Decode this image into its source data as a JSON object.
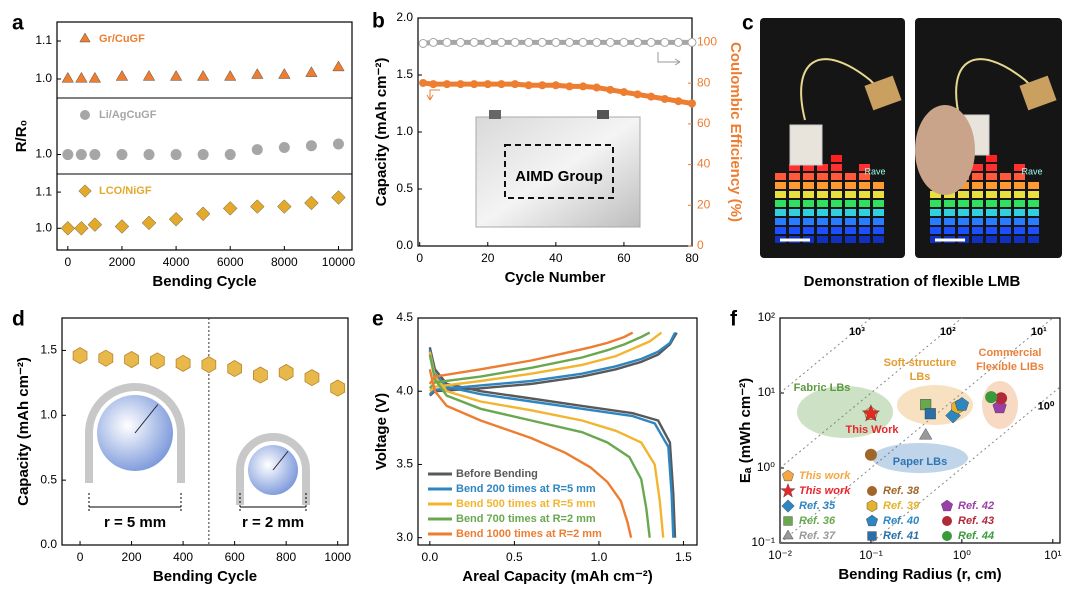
{
  "chart_data": [
    {
      "panel": "a",
      "type": "scatter",
      "x_label": "Bending Cycle",
      "y_label": "R/R₀",
      "x": [
        0,
        500,
        1000,
        2000,
        3000,
        4000,
        5000,
        6000,
        7000,
        8000,
        9000,
        10000
      ],
      "xlim": [
        -400,
        10500
      ],
      "xticks": [
        0,
        2000,
        4000,
        6000,
        8000,
        10000
      ],
      "subplots": [
        {
          "name": "Gr/CuGF",
          "color": "#ed7d31",
          "marker": "triangle",
          "values": [
            1.0,
            1.0,
            1.0,
            1.005,
            1.005,
            1.005,
            1.005,
            1.005,
            1.01,
            1.01,
            1.015,
            1.03
          ],
          "ylim": [
            0.95,
            1.15
          ],
          "yticks": [
            {
              "value": 1,
              "label": "1.0"
            },
            1.1
          ]
        },
        {
          "name": "Li/AgCuGF",
          "color": "#a6a6a6",
          "marker": "circle",
          "values": [
            1.0,
            1.0,
            1.0,
            1.0,
            1.0,
            1.0,
            1.0,
            1.0,
            1.014,
            1.02,
            1.025,
            1.03
          ],
          "ylim": [
            0.945,
            1.16
          ],
          "yticks": [
            {
              "value": 1,
              "label": "1.0"
            }
          ]
        },
        {
          "name": "LCO/NiGF",
          "color": "#e3a92b",
          "marker": "diamond",
          "values": [
            1.0,
            1.0,
            1.01,
            1.005,
            1.015,
            1.025,
            1.04,
            1.055,
            1.06,
            1.06,
            1.07,
            1.085
          ],
          "ylim": [
            0.94,
            1.15
          ],
          "yticks": [
            {
              "value": 1,
              "label": "1.0"
            },
            1.1
          ]
        }
      ]
    },
    {
      "panel": "b",
      "type": "line",
      "x_label": "Cycle Number",
      "y_label": "Capacity (mAh cm⁻²)",
      "y2_label": "Coulombic Efficiency (%)",
      "y2_color": "#ed7d31",
      "inset_text": "AIMD Group",
      "x": [
        1,
        4,
        8,
        12,
        16,
        20,
        24,
        28,
        32,
        36,
        40,
        44,
        48,
        52,
        56,
        60,
        64,
        68,
        72,
        76,
        80
      ],
      "xlim": [
        -0.5,
        80
      ],
      "xticks": [
        0,
        20,
        40,
        60,
        80
      ],
      "ylim": [
        0,
        2
      ],
      "yticks": [
        {
          "value": 0,
          "label": "0.0"
        },
        0.5,
        {
          "value": 1,
          "label": "1.0"
        },
        1.5,
        {
          "value": 2,
          "label": "2.0"
        }
      ],
      "y2lim": [
        0,
        112
      ],
      "y2ticks": [
        0,
        20,
        40,
        60,
        80,
        100
      ],
      "series": [
        {
          "color": "#ed7d31",
          "marker": "circle",
          "values": [
            1.43,
            1.42,
            1.42,
            1.42,
            1.42,
            1.42,
            1.42,
            1.42,
            1.41,
            1.41,
            1.41,
            1.4,
            1.4,
            1.39,
            1.37,
            1.35,
            1.33,
            1.31,
            1.29,
            1.27,
            1.25
          ]
        },
        {
          "color": "#a6a6a6",
          "marker": "circle-open",
          "axis": "y2",
          "values": [
            99.5,
            100,
            100,
            100,
            100,
            100,
            100,
            100,
            100,
            100,
            100,
            100,
            100,
            100,
            100,
            100,
            100,
            100,
            100,
            100,
            100
          ]
        }
      ]
    },
    {
      "panel": "d",
      "type": "scatter",
      "x_label": "Bending Cycle",
      "y_label": "Capacity (mAh cm⁻²)",
      "inset_labels": [
        "r = 5 mm",
        "r = 2 mm"
      ],
      "x": [
        0,
        100,
        200,
        300,
        400,
        500,
        600,
        700,
        800,
        900,
        1000
      ],
      "values": [
        1.46,
        1.44,
        1.43,
        1.42,
        1.4,
        1.39,
        1.36,
        1.31,
        1.33,
        1.29,
        1.21
      ],
      "color": "#e8b84a",
      "marker": "hexagon",
      "divider_x": 500,
      "xlim": [
        -70,
        1040
      ],
      "xticks": [
        0,
        200,
        400,
        600,
        800,
        1000
      ],
      "ylim": [
        0,
        1.75
      ],
      "yticks": [
        {
          "value": 0,
          "label": "0.0"
        },
        0.5,
        {
          "value": 1,
          "label": "1.0"
        },
        1.5
      ]
    },
    {
      "panel": "e",
      "type": "line",
      "x_label": "Areal Capacity (mAh cm⁻²)",
      "y_label": "Voltage (V)",
      "xlim": [
        -0.07,
        1.58
      ],
      "xticks": [
        {
          "value": 0,
          "label": "0.0"
        },
        0.5,
        {
          "value": 1,
          "label": "1.0"
        },
        1.5
      ],
      "ylim": [
        2.95,
        4.5
      ],
      "yticks": [
        {
          "value": 3,
          "label": "3.0"
        },
        3.5,
        {
          "value": 4,
          "label": "4.0"
        },
        4.5
      ],
      "series": [
        {
          "name": "Before Bending",
          "color": "#595959",
          "x": [
            0,
            0.03,
            0.1,
            0.3,
            0.6,
            0.9,
            1.2,
            1.35,
            1.42,
            1.44,
            1.45,
            null,
            0,
            0.03,
            0.3,
            0.6,
            0.9,
            1.1,
            1.25,
            1.35,
            1.42,
            1.46
          ],
          "values": [
            4.3,
            4.15,
            4.05,
            4.0,
            3.95,
            3.9,
            3.85,
            3.8,
            3.65,
            3.3,
            3.0,
            null,
            3.97,
            4.0,
            4.02,
            4.05,
            4.1,
            4.15,
            4.2,
            4.25,
            4.32,
            4.4
          ]
        },
        {
          "name": "Bend 200 times at R=5 mm",
          "color": "#2e86c1",
          "x": [
            0,
            0.03,
            0.1,
            0.3,
            0.6,
            0.9,
            1.2,
            1.33,
            1.41,
            1.43,
            1.44,
            null,
            0,
            0.03,
            0.3,
            0.6,
            0.9,
            1.1,
            1.25,
            1.35,
            1.42,
            1.45
          ],
          "values": [
            4.28,
            4.12,
            4.03,
            3.98,
            3.93,
            3.88,
            3.83,
            3.78,
            3.62,
            3.3,
            3.0,
            null,
            3.98,
            4.01,
            4.04,
            4.07,
            4.12,
            4.17,
            4.22,
            4.27,
            4.33,
            4.4
          ]
        },
        {
          "name": "Bend 500 times at R=5 mm",
          "color": "#f2b530",
          "x": [
            0,
            0.03,
            0.1,
            0.3,
            0.6,
            0.9,
            1.1,
            1.25,
            1.33,
            1.36,
            1.38,
            null,
            0,
            0.03,
            0.3,
            0.6,
            0.9,
            1.1,
            1.2,
            1.3,
            1.37
          ],
          "values": [
            4.27,
            4.1,
            4.0,
            3.93,
            3.87,
            3.8,
            3.73,
            3.65,
            3.5,
            3.25,
            3.0,
            null,
            4.0,
            4.03,
            4.07,
            4.12,
            4.18,
            4.24,
            4.29,
            4.34,
            4.4
          ]
        },
        {
          "name": "Bend 700 times at R=2 mm",
          "color": "#6aa84f",
          "x": [
            0,
            0.03,
            0.1,
            0.3,
            0.6,
            0.9,
            1.05,
            1.18,
            1.25,
            1.28,
            1.3,
            null,
            0,
            0.03,
            0.3,
            0.6,
            0.9,
            1.05,
            1.15,
            1.25,
            1.3
          ],
          "values": [
            4.25,
            4.08,
            3.97,
            3.88,
            3.8,
            3.72,
            3.65,
            3.55,
            3.4,
            3.2,
            3.0,
            null,
            4.02,
            4.06,
            4.1,
            4.16,
            4.23,
            4.28,
            4.32,
            4.37,
            4.4
          ]
        },
        {
          "name": "Bend 1000 times at R=2 mm",
          "color": "#ed7d31",
          "x": [
            0,
            0.03,
            0.1,
            0.3,
            0.6,
            0.8,
            0.95,
            1.05,
            1.13,
            1.17,
            1.19,
            null,
            0,
            0.03,
            0.3,
            0.6,
            0.8,
            0.95,
            1.05,
            1.15,
            1.2
          ],
          "values": [
            4.15,
            4.0,
            3.9,
            3.8,
            3.68,
            3.58,
            3.48,
            3.38,
            3.25,
            3.1,
            3.0,
            null,
            4.05,
            4.1,
            4.15,
            4.21,
            4.26,
            4.3,
            4.33,
            4.37,
            4.4
          ]
        }
      ]
    },
    {
      "panel": "f",
      "type": "scatter",
      "x_label": "Bending Radius (r, cm)",
      "y_label": "Eₐ (mWh cm⁻²)",
      "log_x": true,
      "log_y": true,
      "xlim": [
        0.01,
        12
      ],
      "xticks": [
        {
          "value": 0.01,
          "label": "10⁻²"
        },
        {
          "value": 0.1,
          "label": "10⁻¹"
        },
        {
          "value": 1,
          "label": "10⁰"
        },
        {
          "value": 10,
          "label": "10¹"
        }
      ],
      "ylim": [
        0.1,
        100
      ],
      "yticks": [
        {
          "value": 0.1,
          "label": "10⁻¹"
        },
        {
          "value": 1,
          "label": "10⁰"
        },
        {
          "value": 10,
          "label": "10¹"
        },
        {
          "value": 100,
          "label": "10²"
        }
      ],
      "iso_lines": [
        {
          "value": 1000,
          "label": "10³"
        },
        {
          "value": 100,
          "label": "10²"
        },
        {
          "value": 10,
          "label": "10¹"
        },
        {
          "value": 1,
          "label": "10⁰"
        }
      ],
      "annotation": "This Work",
      "regions": [
        {
          "label": [
            "Fabric LBs"
          ],
          "color": "#5b9a3e"
        },
        {
          "label": [
            "Soft-structure",
            "LBs"
          ],
          "color": "#e39b2e"
        },
        {
          "label": [
            "Paper LBs"
          ],
          "color": "#2e75b6"
        },
        {
          "label": [
            "Commercial",
            "Flexible LIBs"
          ],
          "color": "#e8823b"
        }
      ],
      "series": [
        {
          "name": "This work",
          "color": "#f5a742",
          "marker": "pentagon",
          "x": [
            0.1
          ],
          "values": [
            5.3
          ]
        },
        {
          "name": "This work",
          "color": "#e8262a",
          "marker": "star",
          "x": [
            0.1
          ],
          "values": [
            5.3
          ]
        },
        {
          "name": "Ref. 35",
          "color": "#2e86c1",
          "marker": "diamond",
          "x": [
            0.8
          ],
          "values": [
            5.0
          ]
        },
        {
          "name": "Ref. 36",
          "color": "#6aa84f",
          "marker": "square",
          "x": [
            0.4
          ],
          "values": [
            7.0
          ]
        },
        {
          "name": "Ref. 37",
          "color": "#999999",
          "marker": "triangle",
          "x": [
            0.4
          ],
          "values": [
            2.7
          ]
        },
        {
          "name": "Ref. 38",
          "color": "#a0662a",
          "marker": "circle",
          "x": [
            0.1
          ],
          "values": [
            1.5
          ]
        },
        {
          "name": "Ref. 39",
          "color": "#e3b42b",
          "marker": "hexagon",
          "x": [
            0.9
          ],
          "values": [
            6.5
          ]
        },
        {
          "name": "Ref. 40",
          "color": "#2e86c1",
          "marker": "pentagon",
          "x": [
            1.0
          ],
          "values": [
            7.0
          ]
        },
        {
          "name": "Ref. 41",
          "color": "#2a6fa8",
          "marker": "square",
          "x": [
            0.45
          ],
          "values": [
            5.3
          ]
        },
        {
          "name": "Ref. 42",
          "color": "#9b3fa8",
          "marker": "pentagon",
          "x": [
            2.6
          ],
          "values": [
            6.5
          ]
        },
        {
          "name": "Ref. 43",
          "color": "#b02a3a",
          "marker": "circle",
          "x": [
            2.7
          ],
          "values": [
            8.5
          ]
        },
        {
          "name": "Ref. 44",
          "color": "#3a9a3a",
          "marker": "circle",
          "x": [
            2.1
          ],
          "values": [
            8.8
          ]
        }
      ]
    }
  ],
  "photo_panel": {
    "panel": "c",
    "caption": "Demonstration of flexible LMB",
    "screen_labels": [
      "Rave",
      "Rave"
    ]
  }
}
